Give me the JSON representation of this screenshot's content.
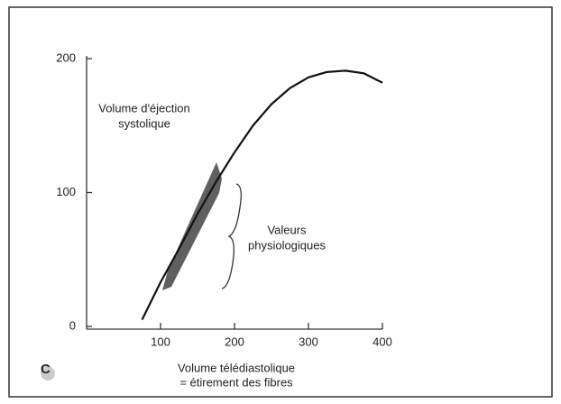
{
  "chart_data": {
    "type": "line",
    "ylabel": [
      "Volume d'éjection",
      "systolique"
    ],
    "xlabel": [
      "Volume télédiastolique",
      "= étirement des fibres"
    ],
    "annotation": [
      "Valeurs",
      "physiologiques"
    ],
    "panel_label": "C",
    "x": [
      75,
      100,
      125,
      150,
      175,
      200,
      225,
      250,
      275,
      300,
      325,
      350,
      375,
      400
    ],
    "series": [
      {
        "name": null,
        "color": "#111111",
        "values": [
          5,
          33,
          58,
          84,
          108,
          130,
          150,
          166,
          178,
          186,
          190,
          191,
          189,
          182
        ]
      }
    ],
    "xlim": [
      0,
      400
    ],
    "xticks": [
      100,
      200,
      300,
      400
    ],
    "ylim": [
      0,
      200
    ],
    "yticks": [
      0,
      100,
      200
    ]
  }
}
